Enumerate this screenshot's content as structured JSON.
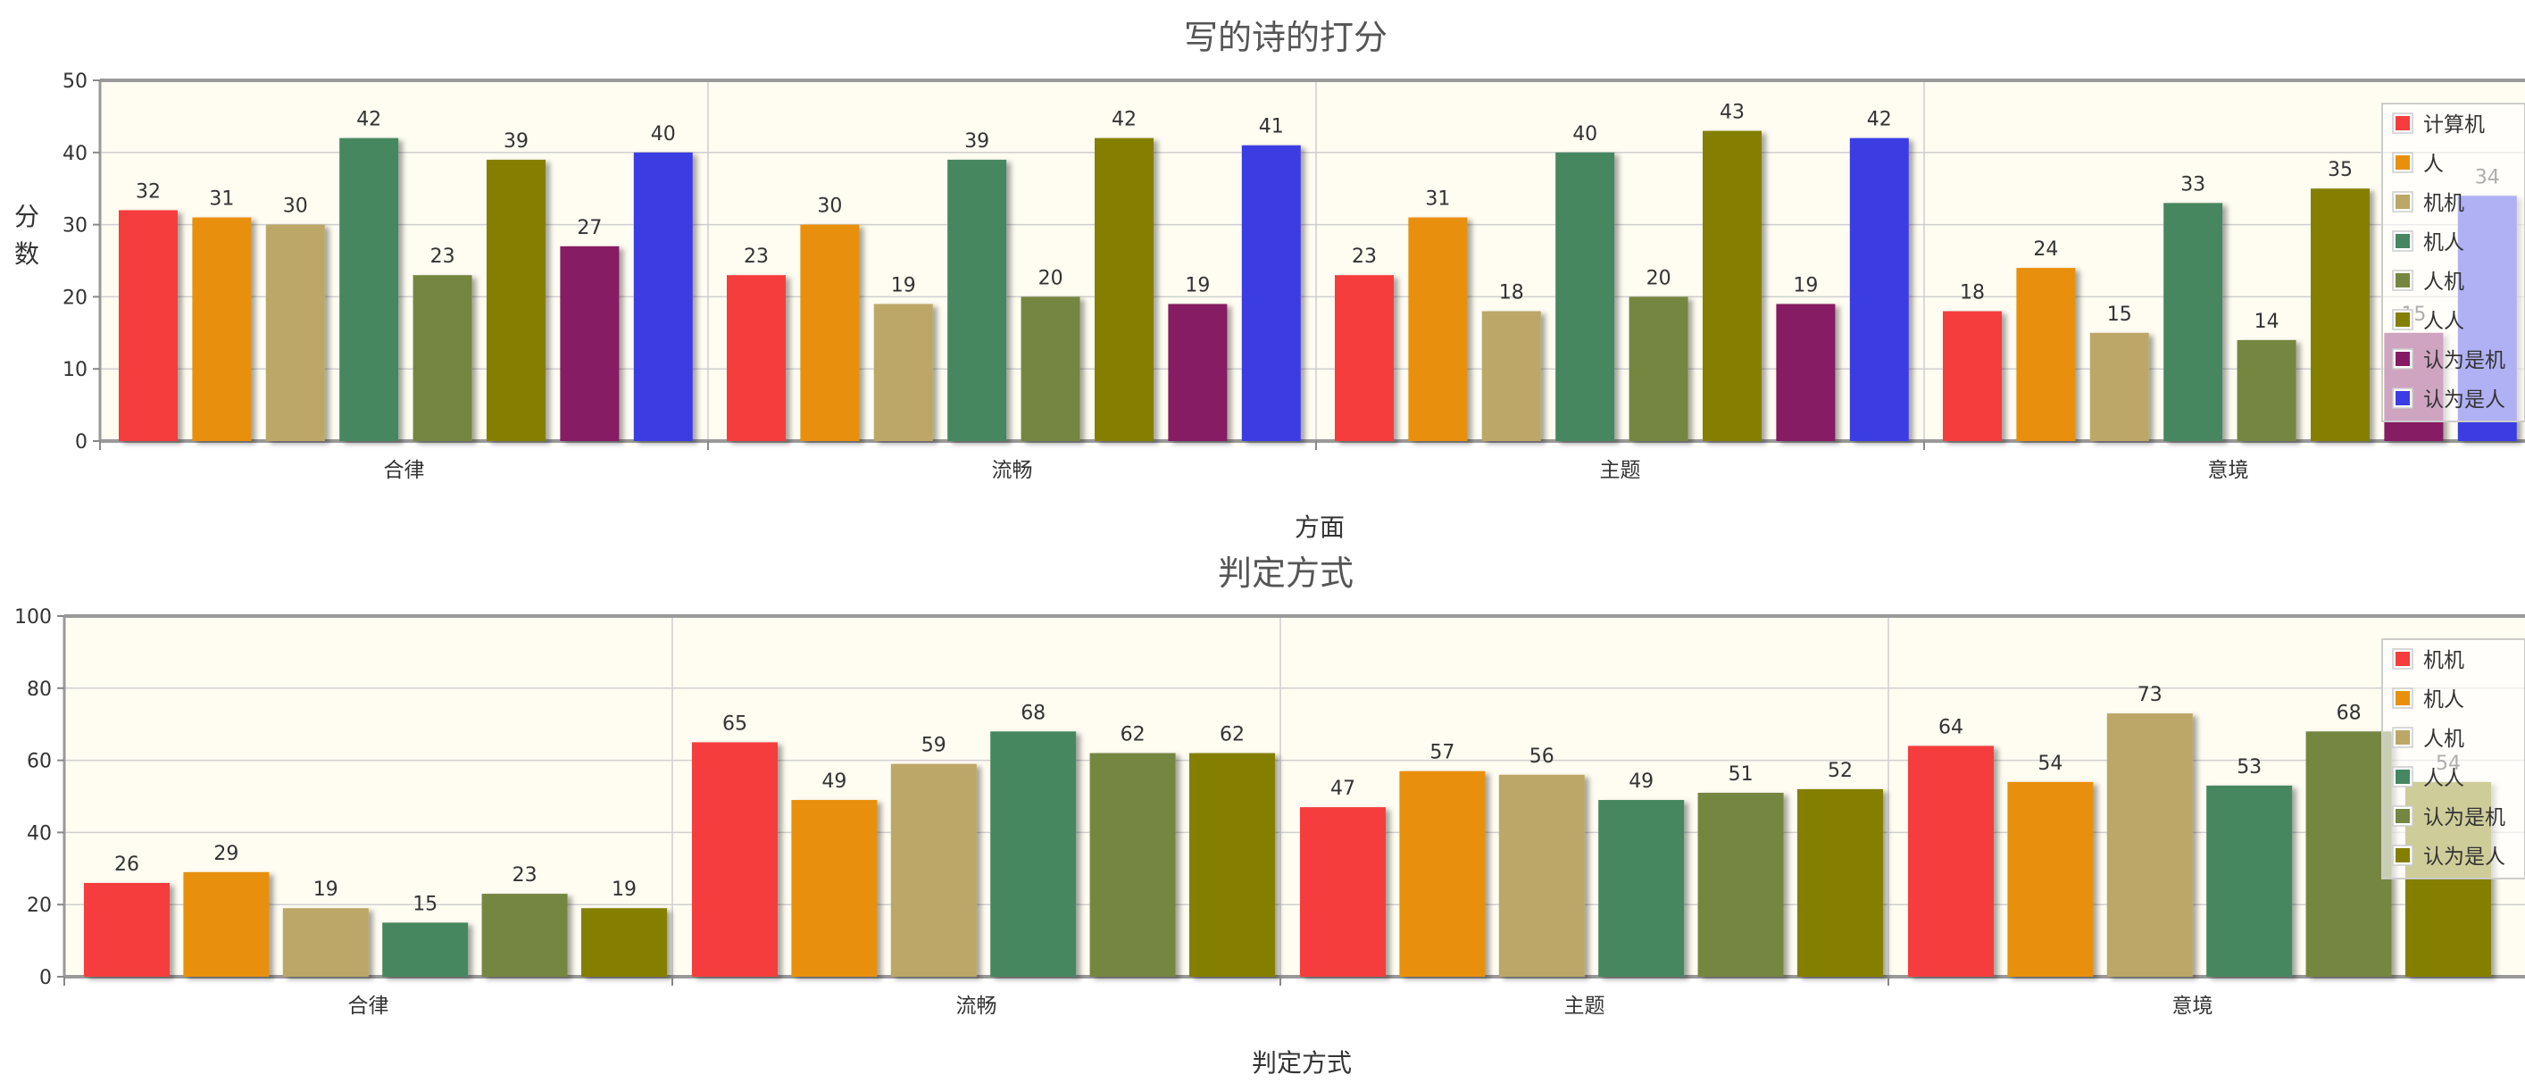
{
  "chart_data": [
    {
      "type": "bar",
      "title": "写的诗的打分",
      "xlabel": "方面",
      "ylabel": "分数",
      "ylim": [
        0,
        50
      ],
      "yticks": [
        0,
        10,
        20,
        30,
        40,
        50
      ],
      "categories": [
        "合律",
        "流畅",
        "主题",
        "意境"
      ],
      "grid": true,
      "legend_position": "top-right",
      "series": [
        {
          "name": "计算机",
          "color": "#f53d3d",
          "values": [
            32,
            23,
            23,
            18
          ]
        },
        {
          "name": "人",
          "color": "#e8900c",
          "values": [
            31,
            30,
            31,
            24
          ]
        },
        {
          "name": "机机",
          "color": "#bca767",
          "values": [
            30,
            19,
            18,
            15
          ]
        },
        {
          "name": "机人",
          "color": "#468761",
          "values": [
            42,
            39,
            40,
            33
          ]
        },
        {
          "name": "人机",
          "color": "#758640",
          "values": [
            23,
            20,
            20,
            14
          ]
        },
        {
          "name": "人人",
          "color": "#857f00",
          "values": [
            39,
            42,
            43,
            35
          ]
        },
        {
          "name": "认为是机",
          "color": "#861a64",
          "values": [
            27,
            19,
            19,
            15
          ]
        },
        {
          "name": "认为是人",
          "color": "#3b3ce3",
          "values": [
            40,
            41,
            42,
            34
          ]
        }
      ]
    },
    {
      "type": "bar",
      "title": "判定方式",
      "xlabel": "判定方式",
      "ylabel": "",
      "ylim": [
        0,
        100
      ],
      "yticks": [
        0,
        20,
        40,
        60,
        80,
        100
      ],
      "categories": [
        "合律",
        "流畅",
        "主题",
        "意境"
      ],
      "grid": true,
      "legend_position": "top-right",
      "series": [
        {
          "name": "机机",
          "color": "#f53d3d",
          "values": [
            26,
            65,
            47,
            64
          ]
        },
        {
          "name": "机人",
          "color": "#e8900c",
          "values": [
            29,
            49,
            57,
            54
          ]
        },
        {
          "name": "人机",
          "color": "#bca767",
          "values": [
            19,
            59,
            56,
            73
          ]
        },
        {
          "name": "人人",
          "color": "#468761",
          "values": [
            15,
            68,
            49,
            53
          ]
        },
        {
          "name": "认为是机",
          "color": "#758640",
          "values": [
            23,
            62,
            51,
            68
          ]
        },
        {
          "name": "认为是人",
          "color": "#857f00",
          "values": [
            19,
            62,
            52,
            54
          ]
        }
      ]
    }
  ]
}
